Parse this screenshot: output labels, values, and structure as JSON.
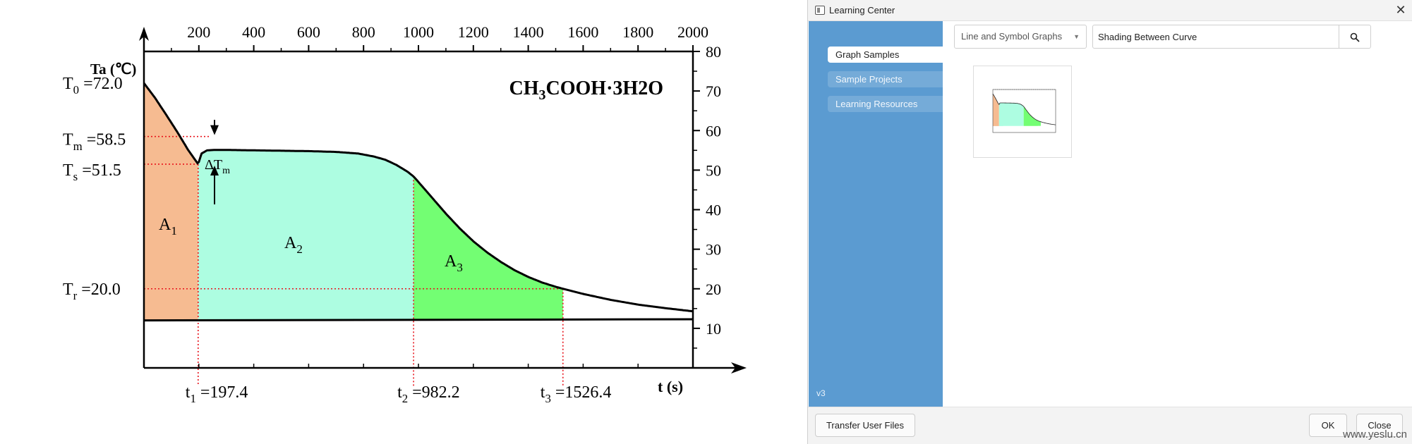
{
  "chart_data": {
    "type": "area",
    "title": "CH₃COOH·3H2O",
    "ylabel": "Ta (℃)",
    "xlabel": "t (s)",
    "xlim": [
      0,
      2000
    ],
    "ylim": [
      0,
      80
    ],
    "x_ticks": [
      200,
      400,
      600,
      800,
      1000,
      1200,
      1400,
      1600,
      1800,
      2000
    ],
    "y_ticks": [
      10,
      20,
      30,
      40,
      50,
      60,
      70,
      80
    ],
    "curve": {
      "x": [
        0,
        40,
        80,
        120,
        160,
        197.4,
        210,
        230,
        260,
        300,
        400,
        500,
        600,
        700,
        780,
        840,
        880,
        920,
        960,
        982.2,
        1000,
        1050,
        1100,
        1150,
        1200,
        1250,
        1300,
        1350,
        1400,
        1450,
        1500,
        1526.4,
        1600,
        1700,
        1800,
        1900,
        2000
      ],
      "y": [
        72.0,
        68.3,
        64.1,
        59.8,
        55.2,
        51.5,
        54.2,
        55.0,
        55.1,
        55.1,
        55.0,
        54.9,
        54.8,
        54.6,
        54.2,
        53.4,
        52.6,
        51.3,
        49.6,
        48.4,
        47.0,
        43.0,
        39.0,
        35.3,
        32.0,
        29.2,
        26.8,
        24.7,
        23.0,
        21.6,
        20.5,
        20.0,
        18.7,
        17.2,
        16.0,
        15.1,
        14.3
      ]
    },
    "baseline": {
      "x": [
        0,
        2000
      ],
      "y": [
        12.0,
        12.3
      ]
    },
    "regions": [
      {
        "name": "A₁",
        "x_from": 0,
        "x_to": 197.4,
        "color": "#f6bb91"
      },
      {
        "name": "A₂",
        "x_from": 197.4,
        "x_to": 982.2,
        "color": "#adfde1"
      },
      {
        "name": "A₃",
        "x_from": 982.2,
        "x_to": 1526.4,
        "color": "#73fe73"
      }
    ],
    "levels": [
      {
        "sym": "T",
        "sub": "0",
        "text": " =72.0",
        "value": 72.0
      },
      {
        "sym": "T",
        "sub": "m",
        "text": " =58.5",
        "value": 58.5
      },
      {
        "sym": "T",
        "sub": "s",
        "text": " =51.5",
        "value": 51.5
      },
      {
        "sym": "T",
        "sub": "r",
        "text": " =20.0",
        "value": 20.0
      }
    ],
    "times": [
      {
        "sym": "t",
        "sub": "1",
        "text": " =197.4",
        "value": 197.4
      },
      {
        "sym": "t",
        "sub": "2",
        "text": " =982.2",
        "value": 982.2
      },
      {
        "sym": "t",
        "sub": "3",
        "text": " =1526.4",
        "value": 1526.4
      }
    ],
    "delta_label": {
      "sym": "ΔT",
      "sub": "m"
    },
    "grid": false,
    "legend": "none"
  },
  "dialog": {
    "title": "Learning Center",
    "close_icon": "close-icon",
    "sidebar": {
      "items": [
        {
          "label": "Graph Samples",
          "active": true
        },
        {
          "label": "Sample Projects",
          "active": false
        },
        {
          "label": "Learning Resources",
          "active": false
        }
      ],
      "version": "v3",
      "color": "#5b9bd1"
    },
    "category": {
      "value": "Line and Symbol Graphs",
      "icon": "chevron-down-icon"
    },
    "search": {
      "value": "Shading Between Curve",
      "icon": "search-icon"
    },
    "footer": {
      "transfer_label": "Transfer User Files",
      "ok_label": "OK",
      "close_label": "Close"
    },
    "watermark": "www.yeslu.cn"
  }
}
